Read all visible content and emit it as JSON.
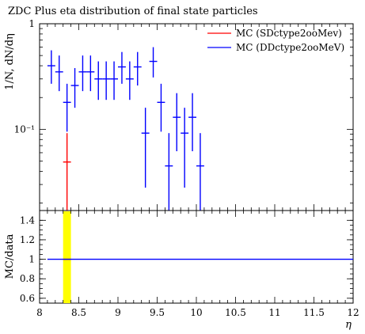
{
  "chart_data": [
    {
      "type": "scatter",
      "panel": "main",
      "title": "ZDC Plus eta distribution of final state particles",
      "ylabel": "1/N, dN/dη",
      "yscale": "log",
      "xlim": [
        8,
        12
      ],
      "ylim": [
        0.017,
        1
      ],
      "ytick_labels": [
        {
          "value": 1,
          "label": "1"
        },
        {
          "value": 0.1,
          "label": "10⁻¹"
        }
      ],
      "legend_position": "top-right",
      "series": [
        {
          "name": "MC (SDctype2ooMev)",
          "color": "#ff0000",
          "points": [
            {
              "x": 8.35,
              "xerr": 0.05,
              "y": 0.049,
              "ylo": 0.017,
              "yhi": 0.092
            }
          ]
        },
        {
          "name": "MC (DDctype2ooMeV)",
          "color": "#0000ff",
          "points": [
            {
              "x": 8.15,
              "xerr": 0.05,
              "y": 0.4,
              "ylo": 0.27,
              "yhi": 0.56
            },
            {
              "x": 8.25,
              "xerr": 0.05,
              "y": 0.35,
              "ylo": 0.23,
              "yhi": 0.5
            },
            {
              "x": 8.35,
              "xerr": 0.05,
              "y": 0.18,
              "ylo": 0.095,
              "yhi": 0.27
            },
            {
              "x": 8.45,
              "xerr": 0.05,
              "y": 0.26,
              "ylo": 0.16,
              "yhi": 0.38
            },
            {
              "x": 8.55,
              "xerr": 0.05,
              "y": 0.35,
              "ylo": 0.23,
              "yhi": 0.5
            },
            {
              "x": 8.65,
              "xerr": 0.05,
              "y": 0.35,
              "ylo": 0.23,
              "yhi": 0.5
            },
            {
              "x": 8.75,
              "xerr": 0.05,
              "y": 0.3,
              "ylo": 0.19,
              "yhi": 0.44
            },
            {
              "x": 8.85,
              "xerr": 0.05,
              "y": 0.3,
              "ylo": 0.19,
              "yhi": 0.44
            },
            {
              "x": 8.95,
              "xerr": 0.05,
              "y": 0.3,
              "ylo": 0.19,
              "yhi": 0.44
            },
            {
              "x": 9.05,
              "xerr": 0.05,
              "y": 0.39,
              "ylo": 0.27,
              "yhi": 0.54
            },
            {
              "x": 9.15,
              "xerr": 0.05,
              "y": 0.3,
              "ylo": 0.19,
              "yhi": 0.44
            },
            {
              "x": 9.25,
              "xerr": 0.05,
              "y": 0.39,
              "ylo": 0.26,
              "yhi": 0.54
            },
            {
              "x": 9.35,
              "xerr": 0.05,
              "y": 0.092,
              "ylo": 0.028,
              "yhi": 0.16
            },
            {
              "x": 9.45,
              "xerr": 0.05,
              "y": 0.44,
              "ylo": 0.31,
              "yhi": 0.6
            },
            {
              "x": 9.55,
              "xerr": 0.05,
              "y": 0.18,
              "ylo": 0.095,
              "yhi": 0.27
            },
            {
              "x": 9.65,
              "xerr": 0.05,
              "y": 0.045,
              "ylo": 0.017,
              "yhi": 0.092
            },
            {
              "x": 9.75,
              "xerr": 0.05,
              "y": 0.13,
              "ylo": 0.062,
              "yhi": 0.22
            },
            {
              "x": 9.85,
              "xerr": 0.05,
              "y": 0.092,
              "ylo": 0.028,
              "yhi": 0.16
            },
            {
              "x": 9.95,
              "xerr": 0.05,
              "y": 0.13,
              "ylo": 0.062,
              "yhi": 0.22
            },
            {
              "x": 10.05,
              "xerr": 0.05,
              "y": 0.045,
              "ylo": 0.017,
              "yhi": 0.092
            }
          ]
        }
      ]
    },
    {
      "type": "line",
      "panel": "ratio",
      "ylabel": "MC/data",
      "xlabel": "η",
      "xlim": [
        8,
        12
      ],
      "ylim": [
        0.55,
        1.5
      ],
      "xticks": [
        8,
        8.5,
        9,
        9.5,
        10,
        10.5,
        11,
        11.5,
        12
      ],
      "xtick_labels": [
        "8",
        "8.5",
        "9",
        "9.5",
        "10",
        "10.5",
        "11",
        "11.5",
        "12"
      ],
      "yticks": [
        0.6,
        0.8,
        1,
        1.2,
        1.4
      ],
      "ytick_labels": [
        "0.6",
        "0.8",
        "1",
        "1.2",
        "1.4"
      ],
      "band": {
        "x0": 8.3,
        "x1": 8.4,
        "color": "#ffff00"
      },
      "series": [
        {
          "color": "#ff0000",
          "x": [
            8.3,
            8.4
          ],
          "y": [
            1,
            1
          ]
        },
        {
          "color": "#0000ff",
          "x": [
            8.1,
            12
          ],
          "y": [
            1,
            1
          ]
        }
      ]
    }
  ]
}
